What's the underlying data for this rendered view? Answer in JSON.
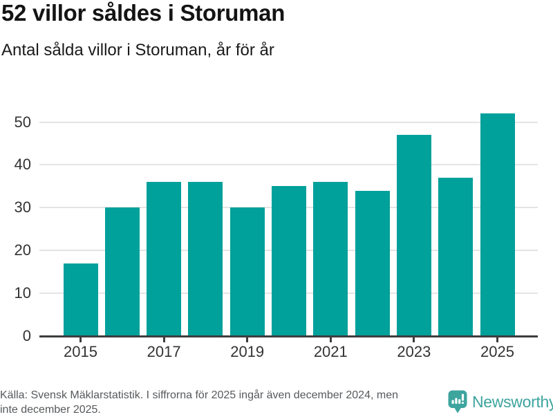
{
  "header": {
    "title": "52 villor såldes i Storuman",
    "subtitle": "Antal sålda villor i Storuman, år för år"
  },
  "chart_data": {
    "type": "bar",
    "categories": [
      "2015",
      "2016",
      "2017",
      "2018",
      "2019",
      "2020",
      "2021",
      "2022",
      "2023",
      "2024",
      "2025"
    ],
    "values": [
      17,
      30,
      36,
      36,
      30,
      35,
      36,
      34,
      47,
      37,
      52
    ],
    "title": "52 villor såldes i Storuman",
    "subtitle": "Antal sålda villor i Storuman, år för år",
    "xlabel": "",
    "ylabel": "",
    "ylim": [
      0,
      54.3
    ],
    "yticks": [
      0,
      10,
      20,
      30,
      40,
      50
    ],
    "labeled_years": [
      "2015",
      "2017",
      "2019",
      "2021",
      "2023",
      "2025"
    ],
    "grid": true,
    "legend": false,
    "bar_color": "#00a09b"
  },
  "footer": {
    "source_lines": [
      "Källa: Svensk Mäklarstatistik. I siffrorna för 2025 ingår även december 2024, men",
      "inte december 2025."
    ],
    "logo_text": "Newsworthy"
  },
  "colors": {
    "background": "#ffffff",
    "bar": "#00a09b",
    "gridline": "#e4e4e4",
    "axis": "#3d3d3d",
    "tick_label": "#333333",
    "title": "#141414",
    "subtitle": "#1a1a1a",
    "footer_text": "#56595c",
    "logo": "#3da49e"
  }
}
